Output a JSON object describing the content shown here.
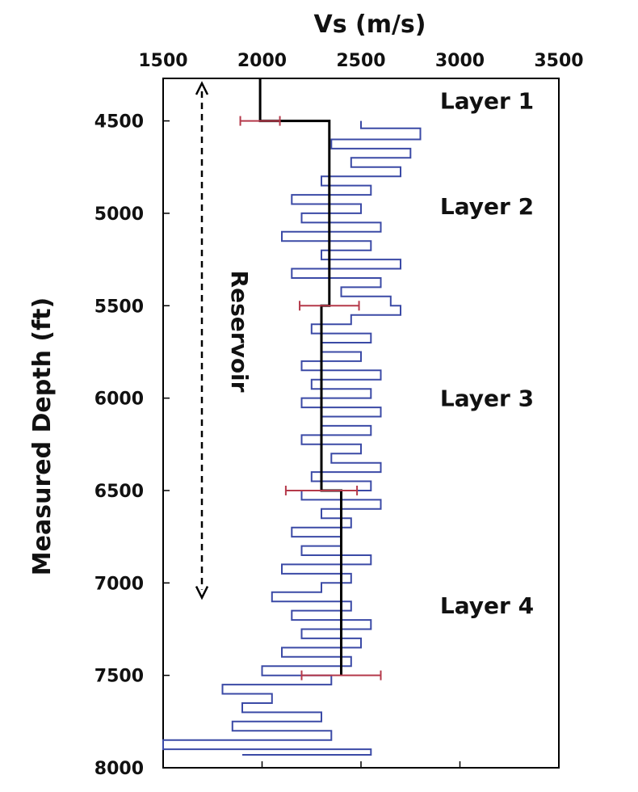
{
  "chart_data": {
    "type": "line",
    "xlabel": "Vs (m/s)",
    "ylabel": "Measured Depth (ft)",
    "xlim": [
      1500,
      3500
    ],
    "ylim": [
      4270,
      8000
    ],
    "y_inverted": true,
    "x_axis_position": "top",
    "xticks": [
      "1500",
      "2000",
      "2500",
      "3000",
      "3500"
    ],
    "yticks": [
      "4500",
      "5000",
      "5500",
      "6000",
      "6500",
      "7000",
      "7500",
      "8000"
    ],
    "grid": false,
    "legend": "none",
    "colors": {
      "log": "#3b4aa6",
      "layer_model": "#000000",
      "error_bars": "#b5394a",
      "arrow": "#000000"
    },
    "series": [
      {
        "kind": "vs-log",
        "depth": [
          4500,
          4540,
          4600,
          4650,
          4700,
          4750,
          4800,
          4850,
          4900,
          4950,
          5000,
          5050,
          5100,
          5150,
          5200,
          5250,
          5300,
          5350,
          5400,
          5450,
          5500,
          5550,
          5600,
          5650,
          5700,
          5750,
          5800,
          5850,
          5900,
          5950,
          6000,
          6050,
          6100,
          6150,
          6200,
          6250,
          6300,
          6350,
          6400,
          6450,
          6500,
          6550,
          6600,
          6650,
          6700,
          6750,
          6800,
          6850,
          6900,
          6950,
          7000,
          7050,
          7100,
          7150,
          7200,
          7250,
          7300,
          7350,
          7400,
          7450,
          7500,
          7550,
          7600,
          7650,
          7700,
          7750,
          7800,
          7850,
          7900,
          7930
        ],
        "vs": [
          2500,
          2800,
          2350,
          2750,
          2450,
          2700,
          2300,
          2550,
          2150,
          2500,
          2200,
          2600,
          2100,
          2550,
          2300,
          2700,
          2150,
          2600,
          2400,
          2650,
          2700,
          2450,
          2250,
          2550,
          2300,
          2500,
          2200,
          2600,
          2250,
          2550,
          2200,
          2600,
          2300,
          2550,
          2200,
          2500,
          2350,
          2600,
          2250,
          2550,
          2200,
          2600,
          2300,
          2450,
          2150,
          2400,
          2200,
          2550,
          2100,
          2450,
          2300,
          2050,
          2450,
          2150,
          2550,
          2200,
          2500,
          2100,
          2450,
          2000,
          2350,
          1800,
          2050,
          1900,
          2300,
          1850,
          2350,
          1500,
          2550,
          1900
        ]
      }
    ],
    "layer_model": [
      {
        "top": 4270,
        "base": 4500,
        "vs": 1990
      },
      {
        "top": 4500,
        "base": 5500,
        "vs": 2340
      },
      {
        "top": 5500,
        "base": 6500,
        "vs": 2300
      },
      {
        "top": 6500,
        "base": 7500,
        "vs": 2400
      }
    ],
    "error_bars": [
      {
        "depth": 4500,
        "center": 1990,
        "half_width": 100
      },
      {
        "depth": 5500,
        "center": 2340,
        "half_width": 150
      },
      {
        "depth": 6500,
        "center": 2300,
        "half_width": 180
      },
      {
        "depth": 7500,
        "center": 2400,
        "half_width": 200
      }
    ],
    "annotations": [
      {
        "text": "Layer 1",
        "depth": 4390
      },
      {
        "text": "Layer 2",
        "depth": 4960
      },
      {
        "text": "Layer 3",
        "depth": 6000
      },
      {
        "text": "Layer 4",
        "depth": 7120
      }
    ],
    "reservoir": {
      "label": "Reservoir",
      "top": 4270,
      "base": 7080
    }
  }
}
